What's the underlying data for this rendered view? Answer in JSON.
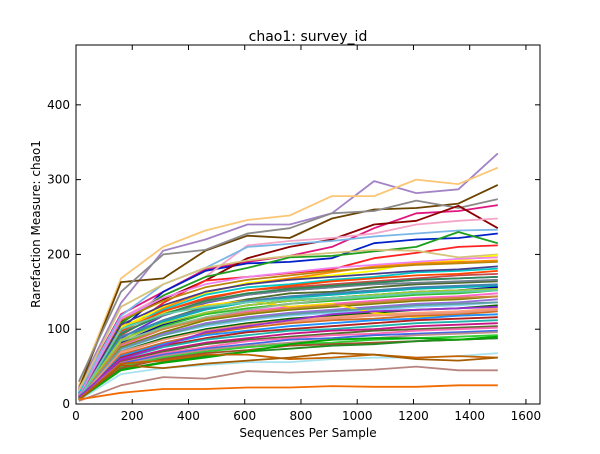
{
  "chart_data": {
    "type": "line",
    "title": "chao1: survey_id",
    "xlabel": "Sequences Per Sample",
    "ylabel": "Rarefaction Measure: chao1",
    "xlim": [
      0,
      1650
    ],
    "ylim": [
      0,
      480
    ],
    "x_ticks": [
      0,
      200,
      400,
      600,
      800,
      1000,
      1200,
      1400,
      1600
    ],
    "y_ticks": [
      0,
      100,
      200,
      300,
      400
    ],
    "grid": false,
    "legend": "none",
    "x": [
      10,
      160,
      310,
      460,
      610,
      760,
      910,
      1060,
      1210,
      1360,
      1500
    ],
    "series": [
      {
        "color": "#a283c6",
        "values": [
          22,
          135,
          205,
          220,
          240,
          240,
          255,
          298,
          282,
          287,
          335
        ]
      },
      {
        "color": "#fbc676",
        "values": [
          25,
          168,
          210,
          232,
          246,
          252,
          278,
          278,
          300,
          294,
          316
        ]
      },
      {
        "color": "#6b4300",
        "values": [
          20,
          163,
          168,
          205,
          225,
          222,
          248,
          260,
          262,
          268,
          293
        ]
      },
      {
        "color": "#8a8a8a",
        "values": [
          30,
          150,
          200,
          206,
          228,
          235,
          255,
          258,
          272,
          262,
          274
        ]
      },
      {
        "color": "#e0167f",
        "values": [
          18,
          120,
          150,
          180,
          190,
          198,
          210,
          235,
          255,
          258,
          266
        ]
      },
      {
        "color": "#0020c8",
        "values": [
          15,
          100,
          150,
          178,
          188,
          190,
          195,
          215,
          220,
          222,
          228
        ]
      },
      {
        "color": "#8b0000",
        "values": [
          12,
          110,
          140,
          165,
          195,
          210,
          220,
          240,
          245,
          265,
          235
        ]
      },
      {
        "color": "#f4a6c9",
        "values": [
          20,
          115,
          145,
          170,
          212,
          218,
          222,
          228,
          240,
          245,
          248
        ]
      },
      {
        "color": "#ff2222",
        "values": [
          14,
          95,
          135,
          165,
          170,
          175,
          180,
          195,
          202,
          210,
          212
        ]
      },
      {
        "color": "#7ab6e8",
        "values": [
          16,
          118,
          160,
          182,
          210,
          214,
          218,
          224,
          228,
          232,
          233
        ]
      },
      {
        "color": "#1e9e1e",
        "values": [
          12,
          108,
          145,
          170,
          182,
          196,
          198,
          204,
          210,
          230,
          215
        ]
      },
      {
        "color": "#d6c27a",
        "values": [
          18,
          130,
          160,
          182,
          192,
          198,
          202,
          206,
          205,
          196,
          200
        ]
      },
      {
        "color": "#ffff00",
        "values": [
          10,
          102,
          130,
          148,
          162,
          168,
          172,
          178,
          190,
          192,
          199
        ]
      },
      {
        "color": "#ff8c00",
        "values": [
          12,
          96,
          128,
          150,
          160,
          168,
          176,
          184,
          188,
          190,
          192
        ]
      },
      {
        "color": "#00c8c8",
        "values": [
          14,
          100,
          126,
          146,
          156,
          160,
          166,
          170,
          176,
          178,
          181
        ]
      },
      {
        "color": "#c64a4a",
        "values": [
          11,
          92,
          124,
          140,
          152,
          156,
          160,
          164,
          168,
          172,
          174
        ]
      },
      {
        "color": "#6633cc",
        "values": [
          12,
          88,
          118,
          135,
          146,
          152,
          156,
          162,
          166,
          168,
          170
        ]
      },
      {
        "color": "#4e6b2f",
        "values": [
          10,
          85,
          112,
          130,
          140,
          148,
          150,
          156,
          160,
          162,
          164
        ]
      },
      {
        "color": "#00b3b3",
        "values": [
          11,
          90,
          110,
          126,
          136,
          142,
          146,
          150,
          154,
          156,
          158
        ]
      },
      {
        "color": "#0000a0",
        "values": [
          9,
          82,
          106,
          122,
          132,
          138,
          142,
          146,
          150,
          152,
          156
        ]
      },
      {
        "color": "#2fbf2f",
        "values": [
          10,
          80,
          104,
          120,
          128,
          134,
          138,
          142,
          146,
          148,
          152
        ]
      },
      {
        "color": "#ff66cc",
        "values": [
          12,
          78,
          100,
          116,
          124,
          130,
          134,
          138,
          142,
          144,
          148
        ]
      },
      {
        "color": "#808000",
        "values": [
          8,
          76,
          96,
          112,
          120,
          126,
          130,
          134,
          138,
          140,
          144
        ]
      },
      {
        "color": "#9370db",
        "values": [
          9,
          74,
          94,
          108,
          116,
          122,
          126,
          130,
          134,
          136,
          140
        ]
      },
      {
        "color": "#87cefa",
        "values": [
          10,
          72,
          92,
          104,
          112,
          118,
          122,
          126,
          130,
          132,
          136
        ]
      },
      {
        "color": "#006400",
        "values": [
          8,
          70,
          88,
          100,
          108,
          114,
          118,
          122,
          126,
          128,
          132
        ]
      },
      {
        "color": "#ffa07a",
        "values": [
          9,
          68,
          86,
          98,
          106,
          112,
          116,
          120,
          122,
          124,
          128
        ]
      },
      {
        "color": "#ffd700",
        "values": [
          10,
          104,
          122,
          132,
          138,
          130,
          134,
          122,
          116,
          118,
          120
        ]
      },
      {
        "color": "#d2691e",
        "values": [
          8,
          66,
          82,
          94,
          102,
          108,
          112,
          114,
          118,
          120,
          124
        ]
      },
      {
        "color": "#1e90ff",
        "values": [
          9,
          64,
          80,
          92,
          98,
          104,
          108,
          112,
          114,
          118,
          120
        ]
      },
      {
        "color": "#b22222",
        "values": [
          8,
          62,
          78,
          88,
          96,
          100,
          104,
          108,
          112,
          114,
          116
        ]
      },
      {
        "color": "#20b2aa",
        "values": [
          7,
          60,
          76,
          86,
          92,
          98,
          100,
          104,
          108,
          110,
          112
        ]
      },
      {
        "color": "#c71585",
        "values": [
          8,
          58,
          72,
          82,
          88,
          94,
          98,
          100,
          104,
          106,
          108
        ]
      },
      {
        "color": "#556b2f",
        "values": [
          7,
          56,
          70,
          80,
          86,
          90,
          94,
          98,
          100,
          102,
          104
        ]
      },
      {
        "color": "#ff69b4",
        "values": [
          8,
          55,
          68,
          76,
          84,
          88,
          92,
          94,
          98,
          100,
          102
        ]
      },
      {
        "color": "#4169e1",
        "values": [
          7,
          54,
          66,
          74,
          80,
          86,
          88,
          92,
          94,
          96,
          98
        ]
      },
      {
        "color": "#bc8f8f",
        "values": [
          6,
          52,
          64,
          72,
          78,
          82,
          86,
          88,
          92,
          94,
          96
        ]
      },
      {
        "color": "#32cd32",
        "values": [
          7,
          50,
          62,
          70,
          76,
          80,
          82,
          86,
          88,
          90,
          92
        ]
      },
      {
        "color": "#a0522d",
        "values": [
          6,
          48,
          60,
          68,
          72,
          78,
          80,
          82,
          84,
          86,
          88
        ]
      },
      {
        "color": "#708090",
        "values": [
          7,
          96,
          118,
          136,
          146,
          152,
          156,
          160,
          162,
          164,
          166
        ]
      },
      {
        "color": "#228b22",
        "values": [
          6,
          46,
          56,
          64,
          70,
          74,
          78,
          80,
          84,
          86,
          88
        ]
      },
      {
        "color": "#8fbc8f",
        "values": [
          6,
          84,
          102,
          116,
          126,
          134,
          140,
          144,
          148,
          150,
          152
        ]
      },
      {
        "color": "#b8860b",
        "values": [
          7,
          112,
          138,
          156,
          166,
          172,
          178,
          182,
          186,
          188,
          190
        ]
      },
      {
        "color": "#483d8b",
        "values": [
          8,
          106,
          132,
          150,
          160,
          166,
          170,
          174,
          178,
          180,
          184
        ]
      },
      {
        "color": "#ff4500",
        "values": [
          8,
          98,
          124,
          142,
          152,
          158,
          164,
          168,
          172,
          174,
          178
        ]
      },
      {
        "color": "#2e8b57",
        "values": [
          9,
          94,
          120,
          138,
          148,
          154,
          158,
          162,
          166,
          168,
          170
        ]
      },
      {
        "color": "#ee82ee",
        "values": [
          10,
          114,
          142,
          160,
          170,
          176,
          182,
          186,
          190,
          194,
          196
        ]
      },
      {
        "color": "#4682b4",
        "values": [
          9,
          90,
          112,
          128,
          138,
          144,
          148,
          152,
          156,
          158,
          160
        ]
      },
      {
        "color": "#9acd32",
        "values": [
          8,
          86,
          108,
          122,
          132,
          138,
          142,
          146,
          150,
          152,
          154
        ]
      },
      {
        "color": "#cd853f",
        "values": [
          7,
          80,
          100,
          114,
          122,
          128,
          132,
          136,
          140,
          142,
          144
        ]
      },
      {
        "color": "#5f9ea0",
        "values": [
          8,
          74,
          92,
          106,
          114,
          120,
          124,
          128,
          132,
          134,
          136
        ]
      },
      {
        "color": "#e9967a",
        "values": [
          7,
          70,
          86,
          98,
          106,
          110,
          114,
          118,
          120,
          122,
          126
        ]
      },
      {
        "color": "#66cdaa",
        "values": [
          6,
          100,
          120,
          130,
          136,
          140,
          142,
          144,
          148,
          150,
          152
        ]
      },
      {
        "color": "#9932cc",
        "values": [
          9,
          60,
          78,
          96,
          104,
          112,
          120,
          124,
          126,
          128,
          130
        ]
      },
      {
        "color": "#a6e3ef",
        "values": [
          5,
          40,
          48,
          52,
          56,
          56,
          60,
          62,
          62,
          64,
          68
        ]
      },
      {
        "color": "#00aa00",
        "values": [
          6,
          45,
          55,
          62,
          70,
          80,
          86,
          88,
          88,
          86,
          90
        ]
      },
      {
        "color": "#c46200",
        "values": [
          6,
          54,
          58,
          66,
          66,
          60,
          62,
          66,
          62,
          64,
          62
        ]
      },
      {
        "color": "#a65c00",
        "values": [
          5,
          52,
          48,
          54,
          58,
          62,
          68,
          66,
          60,
          58,
          62
        ]
      },
      {
        "color": "#b88480",
        "values": [
          4,
          25,
          36,
          34,
          44,
          42,
          44,
          46,
          50,
          45,
          45
        ]
      },
      {
        "color": "#f26b00",
        "values": [
          6,
          15,
          20,
          20,
          22,
          22,
          24,
          23,
          23,
          25,
          25
        ]
      }
    ]
  }
}
